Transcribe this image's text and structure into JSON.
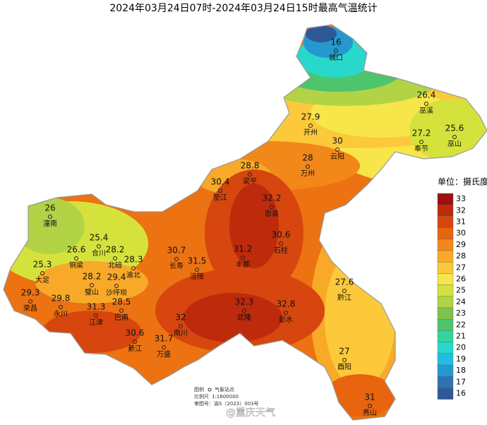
{
  "title": "2024年03月24日07时-2024年03月24日15时最高气温统计",
  "stations": [
    {
      "value": 16,
      "name": "城口"
    },
    {
      "value": 26.4,
      "name": "巫溪"
    },
    {
      "value": 27.9,
      "name": "开州"
    },
    {
      "value": 25.6,
      "name": "巫山"
    },
    {
      "value": 27.2,
      "name": "奉节"
    },
    {
      "value": 30,
      "name": "云阳"
    },
    {
      "value": 28,
      "name": "万州"
    },
    {
      "value": 28.8,
      "name": "梁平"
    },
    {
      "value": 30.4,
      "name": "垫江"
    },
    {
      "value": 32.2,
      "name": "忠县"
    },
    {
      "value": 26,
      "name": "潼南"
    },
    {
      "value": 25.4,
      "name": "合川"
    },
    {
      "value": 30.6,
      "name": "石柱"
    },
    {
      "value": 26.6,
      "name": "铜梁"
    },
    {
      "value": 28.2,
      "name": "北碚"
    },
    {
      "value": 28.3,
      "name": "渝北"
    },
    {
      "value": 31.2,
      "name": "丰都"
    },
    {
      "value": 30.7,
      "name": "长寿"
    },
    {
      "value": 31.5,
      "name": "涪陵"
    },
    {
      "value": 25.3,
      "name": "大足"
    },
    {
      "value": 28.2,
      "name": "璧山"
    },
    {
      "value": 29.4,
      "name": "沙坪坝"
    },
    {
      "value": 27.6,
      "name": "黔江"
    },
    {
      "value": 29.3,
      "name": "荣昌"
    },
    {
      "value": 29.8,
      "name": "永川"
    },
    {
      "value": 28.5,
      "name": "巴南"
    },
    {
      "value": 32.3,
      "name": "武隆"
    },
    {
      "value": 32.8,
      "name": "彭水"
    },
    {
      "value": 31.3,
      "name": "江津"
    },
    {
      "value": 32,
      "name": "南川"
    },
    {
      "value": 30.6,
      "name": "綦江"
    },
    {
      "value": 31.7,
      "name": "万盛"
    },
    {
      "value": 27,
      "name": "酉阳"
    },
    {
      "value": 31,
      "name": "秀山"
    }
  ],
  "legend": {
    "unit": "单位：摄氏度",
    "levels": [
      {
        "value": 33,
        "color": "#9e0f0f"
      },
      {
        "value": 32,
        "color": "#bd2a0c"
      },
      {
        "value": 31,
        "color": "#d6460e"
      },
      {
        "value": 30,
        "color": "#e8640f"
      },
      {
        "value": 29,
        "color": "#f2871a"
      },
      {
        "value": 28,
        "color": "#f8a928"
      },
      {
        "value": 27,
        "color": "#fcc93a"
      },
      {
        "value": 26,
        "color": "#f7e64a"
      },
      {
        "value": 25,
        "color": "#d6e23c"
      },
      {
        "value": 24,
        "color": "#b2d345"
      },
      {
        "value": 23,
        "color": "#80c24c"
      },
      {
        "value": 22,
        "color": "#4ec46c"
      },
      {
        "value": 21,
        "color": "#30d69c"
      },
      {
        "value": 20,
        "color": "#28d8cb"
      },
      {
        "value": 19,
        "color": "#22bde0"
      },
      {
        "value": 18,
        "color": "#2598d0"
      },
      {
        "value": 17,
        "color": "#2e72b2"
      },
      {
        "value": 16,
        "color": "#2f5996"
      }
    ]
  },
  "map_info": {
    "legend_label": "图例",
    "legend_item": "气象站点",
    "scale_label": "比例尺",
    "scale": "1:1600000",
    "approval": "审图号：渝S（2023）003号"
  },
  "watermark": "@重庆天气"
}
